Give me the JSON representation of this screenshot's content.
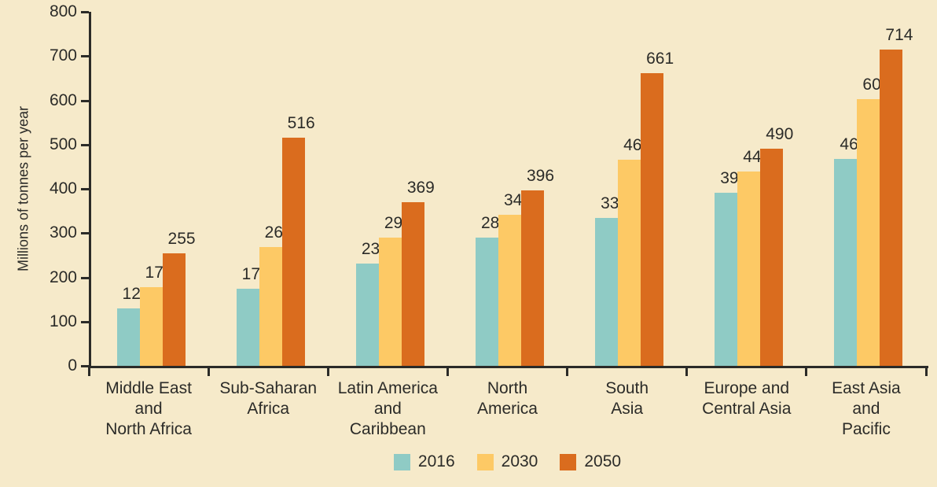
{
  "chart_data": {
    "type": "bar",
    "title": "",
    "xlabel": "",
    "ylabel": "Millions of tonnes per year",
    "ylim": [
      0,
      800
    ],
    "y_ticks": [
      0,
      100,
      200,
      300,
      400,
      500,
      600,
      700,
      800
    ],
    "grid": false,
    "value_labels": true,
    "legend_position": "bottom-center",
    "background_color": "#F6EACA",
    "axis_color": "#2B2B28",
    "text_color": "#2B2B28",
    "categories": [
      "Middle East\nand\nNorth Africa",
      "Sub-Saharan\nAfrica",
      "Latin America\nand\nCaribbean",
      "North\nAmerica",
      "South\nAsia",
      "Europe and\nCentral Asia",
      "East Asia\nand\nPacific"
    ],
    "series": [
      {
        "name": "2016",
        "color": "#8FCBC5",
        "values": [
          129,
          174,
          231,
          289,
          334,
          392,
          468
        ]
      },
      {
        "name": "2030",
        "color": "#FDC965",
        "values": [
          177,
          269,
          290,
          342,
          466,
          440,
          602
        ]
      },
      {
        "name": "2050",
        "color": "#DA6C1E",
        "values": [
          255,
          516,
          369,
          396,
          661,
          490,
          714
        ]
      }
    ]
  }
}
